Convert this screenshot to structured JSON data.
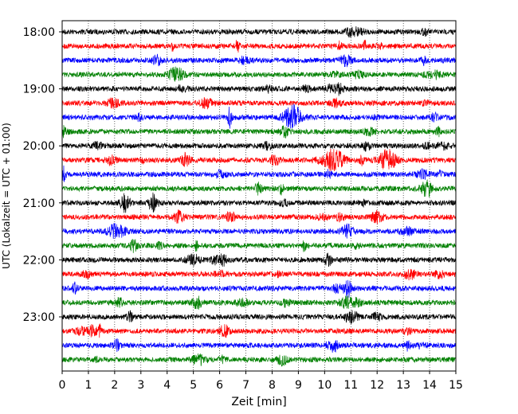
{
  "chart_data": {
    "type": "line",
    "xlabel": "Zeit  [min]",
    "ylabel": "UTC (Lokalzeit = UTC + 01:00)",
    "xlim": [
      0,
      15
    ],
    "x_ticks": [
      "0",
      "1",
      "2",
      "3",
      "4",
      "5",
      "6",
      "7",
      "8",
      "9",
      "10",
      "11",
      "12",
      "13",
      "14",
      "15"
    ],
    "y_ticks": [
      {
        "label": "18:00",
        "trace": 0
      },
      {
        "label": "19:00",
        "trace": 4
      },
      {
        "label": "20:00",
        "trace": 8
      },
      {
        "label": "21:00",
        "trace": 12
      },
      {
        "label": "22:00",
        "trace": 16
      },
      {
        "label": "23:00",
        "trace": 20
      }
    ],
    "grid": "vertical dotted lines at each minute",
    "trace_interval_minutes": 15,
    "trace_start": "18:00",
    "trace_count": 24,
    "trace_colors": [
      "#000000",
      "#ff0000",
      "#0000ff",
      "#008000"
    ],
    "events": [
      {
        "trace": 9,
        "start_min": 9.9,
        "end_min": 11.0,
        "peak_min": 10.3
      },
      {
        "trace": 9,
        "start_min": 11.9,
        "end_min": 12.7,
        "peak_min": 12.4
      },
      {
        "trace": 6,
        "start_min": 8.3,
        "end_min": 9.2,
        "peak_min": 8.8
      }
    ]
  }
}
